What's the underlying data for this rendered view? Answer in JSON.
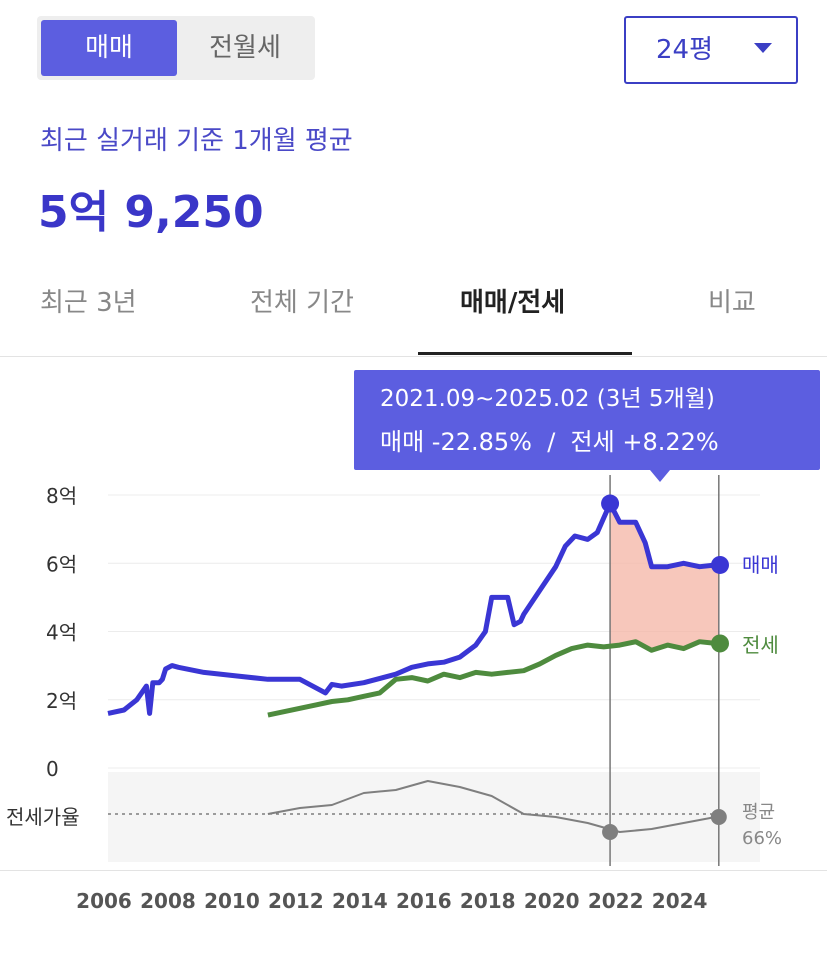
{
  "toggle": {
    "sale_label": "매매",
    "jeonse_label": "전월세"
  },
  "size_select": {
    "value": "24평"
  },
  "summary": {
    "caption": "최근 실거래 기준 1개월 평균",
    "price": "5억 9,250"
  },
  "tabs": [
    {
      "label": "최근 3년",
      "active": false
    },
    {
      "label": "전체 기간",
      "active": false
    },
    {
      "label": "매매/전세",
      "active": true
    },
    {
      "label": "비교",
      "active": false
    }
  ],
  "tooltip": {
    "period": "2021.09~2025.02 (3년 5개월)",
    "change": "매매 -22.85%  /  전세 +8.22%"
  },
  "colors": {
    "accent": "#5c5ee0",
    "sale": "#3a36d4",
    "jeonse": "#4e8b3e",
    "ratio": "#7f7f7f",
    "highlight_fill": "#f4b4a4"
  },
  "chart_data": {
    "type": "line",
    "y_unit": "억",
    "ylim": [
      0,
      8
    ],
    "yticks": [
      "8억",
      "6억",
      "4억",
      "2억",
      "0"
    ],
    "ytick_values": [
      8,
      6,
      4,
      2,
      0
    ],
    "xticks": [
      "2006",
      "2008",
      "2010",
      "2012",
      "2014",
      "2016",
      "2018",
      "2020",
      "2022",
      "2024"
    ],
    "xtick_values": [
      2006,
      2008,
      2010,
      2012,
      2014,
      2016,
      2018,
      2020,
      2022,
      2024
    ],
    "xlim": [
      2006,
      2025.2
    ],
    "grid": true,
    "highlight_range": [
      2021.7,
      2025.1
    ],
    "series": [
      {
        "name": "매매",
        "end_label": "매매",
        "x": [
          2006.0,
          2006.5,
          2006.9,
          2007.2,
          2007.3,
          2007.4,
          2007.5,
          2007.6,
          2007.7,
          2007.8,
          2008.0,
          2008.2,
          2009.0,
          2010.0,
          2011.0,
          2012.0,
          2012.8,
          2013.0,
          2013.3,
          2014.0,
          2015.0,
          2015.5,
          2016.0,
          2016.5,
          2017.0,
          2017.5,
          2017.8,
          2018.0,
          2018.2,
          2018.5,
          2018.7,
          2018.9,
          2019.0,
          2019.5,
          2020.0,
          2020.3,
          2020.6,
          2021.0,
          2021.3,
          2021.7,
          2022.0,
          2022.5,
          2022.8,
          2023.0,
          2023.5,
          2024.0,
          2024.5,
          2025.0
        ],
        "y": [
          1.6,
          1.7,
          2.0,
          2.4,
          1.6,
          2.5,
          2.5,
          2.5,
          2.6,
          2.9,
          3.0,
          2.95,
          2.8,
          2.7,
          2.6,
          2.6,
          2.2,
          2.45,
          2.4,
          2.5,
          2.75,
          2.95,
          3.05,
          3.1,
          3.25,
          3.6,
          4.0,
          5.0,
          5.0,
          5.0,
          4.2,
          4.3,
          4.5,
          5.2,
          5.9,
          6.5,
          6.8,
          6.7,
          6.9,
          7.75,
          7.2,
          7.2,
          6.6,
          5.9,
          5.9,
          6.0,
          5.9,
          5.95
        ],
        "end_value": 5.95
      },
      {
        "name": "전세",
        "end_label": "전세",
        "x": [
          2011.0,
          2011.5,
          2012.0,
          2012.5,
          2013.0,
          2013.5,
          2014.0,
          2014.5,
          2015.0,
          2015.5,
          2016.0,
          2016.5,
          2017.0,
          2017.5,
          2018.0,
          2018.5,
          2019.0,
          2019.5,
          2020.0,
          2020.5,
          2021.0,
          2021.5,
          2022.0,
          2022.5,
          2023.0,
          2023.5,
          2024.0,
          2024.5,
          2025.0
        ],
        "y": [
          1.55,
          1.65,
          1.75,
          1.85,
          1.95,
          2.0,
          2.1,
          2.2,
          2.6,
          2.65,
          2.55,
          2.75,
          2.65,
          2.8,
          2.75,
          2.8,
          2.85,
          3.05,
          3.3,
          3.5,
          3.6,
          3.55,
          3.6,
          3.7,
          3.45,
          3.6,
          3.5,
          3.7,
          3.65
        ],
        "end_value": 3.65
      }
    ],
    "ratio_panel": {
      "label": "전세가율",
      "avg_label": "평균",
      "avg_value": "66%",
      "avg": 66,
      "ylim": [
        50,
        80
      ],
      "x": [
        2011.0,
        2012.0,
        2013.0,
        2014.0,
        2015.0,
        2016.0,
        2017.0,
        2018.0,
        2019.0,
        2020.0,
        2021.0,
        2022.0,
        2023.0,
        2024.0,
        2025.0
      ],
      "y": [
        66,
        68,
        69,
        73,
        74,
        77,
        75,
        72,
        66,
        65,
        63,
        60,
        61,
        63,
        65
      ]
    }
  }
}
